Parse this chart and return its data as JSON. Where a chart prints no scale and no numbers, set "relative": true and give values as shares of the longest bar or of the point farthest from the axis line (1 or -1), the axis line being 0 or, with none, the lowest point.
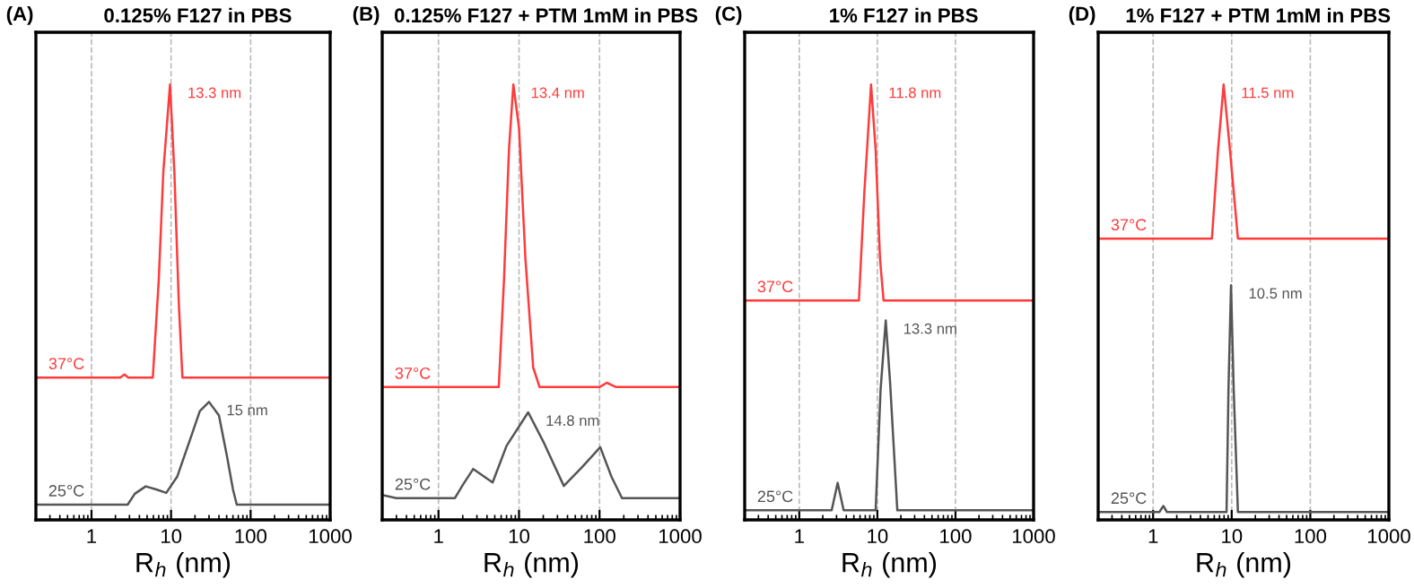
{
  "chart_data": [
    {
      "type": "line",
      "title": "0.125% F127 in PBS",
      "xlabel": "R$_{h}$ (nm)",
      "annotations": [
        "(A)",
        {
          "text": "13.3 nm",
          "x": 9.7,
          "y": 1.0
        },
        {
          "text": "15 nm",
          "x": 30,
          "y": 0.271
        }
      ],
      "relative": true,
      "log": "x",
      "xlim": [
        0.2,
        1000
      ],
      "xticks": [
        1,
        10,
        100,
        1000
      ],
      "grid": "x",
      "line_style": "solid",
      "series": [
        {
          "name": "37°C",
          "color": "#ff3b3b",
          "x": [
            0.2,
            2.3,
            2.6,
            2.9,
            5.9,
            7,
            8,
            9.7,
            11,
            12.5,
            13.9,
            1000
          ],
          "values": [
            0.327,
            0.327,
            0.334,
            0.327,
            0.327,
            0.55,
            0.8,
            1.0,
            0.8,
            0.5,
            0.327,
            0.327
          ]
        },
        {
          "name": "25°C",
          "color": "#555555",
          "x": [
            0.2,
            2.85,
            3.5,
            4.8,
            6.5,
            8.7,
            12,
            17,
            23,
            30,
            40,
            50,
            60,
            67,
            1000
          ],
          "values": [
            0.035,
            0.035,
            0.06,
            0.077,
            0.07,
            0.062,
            0.1,
            0.18,
            0.25,
            0.271,
            0.24,
            0.15,
            0.07,
            0.035,
            0.035
          ]
        }
      ]
    },
    {
      "type": "line",
      "title": "0.125% F127 + PTM 1mM in PBS",
      "xlabel": "R$_{h}$ (nm)",
      "annotations": [
        "(B)",
        {
          "text": "13.4 nm",
          "x": 8.5,
          "y": 1.0
        },
        {
          "text": "14.8 nm",
          "x": 13,
          "y": 0.247
        }
      ],
      "relative": true,
      "log": "x",
      "xlim": [
        0.2,
        1000
      ],
      "xticks": [
        1,
        10,
        100,
        1000
      ],
      "grid": "x",
      "line_style": "solid",
      "series": [
        {
          "name": "37°C",
          "color": "#ff3b3b",
          "x": [
            0.2,
            5.6,
            6.5,
            7.5,
            8.5,
            10,
            12,
            15,
            18,
            100,
            123,
            160,
            1000
          ],
          "values": [
            0.305,
            0.305,
            0.55,
            0.85,
            1.0,
            0.9,
            0.6,
            0.35,
            0.305,
            0.305,
            0.315,
            0.305,
            0.305
          ]
        },
        {
          "name": "25°C",
          "color": "#555555",
          "x": [
            0.2,
            0.3,
            1.6,
            2.0,
            2.7,
            4.7,
            7,
            13,
            20,
            36,
            60,
            102,
            140,
            190,
            1000
          ],
          "values": [
            0.057,
            0.05,
            0.05,
            0.08,
            0.117,
            0.086,
            0.17,
            0.247,
            0.18,
            0.078,
            0.12,
            0.167,
            0.1,
            0.05,
            0.05
          ]
        }
      ]
    },
    {
      "type": "line",
      "title": "1% F127 in PBS",
      "xlabel": "R$_{h}$ (nm)",
      "annotations": [
        "(C)",
        {
          "text": "11.8 nm",
          "x": 8.3,
          "y": 1.0
        },
        {
          "text": "13.3 nm",
          "x": 12.8,
          "y": 0.458
        }
      ],
      "relative": true,
      "log": "x",
      "xlim": [
        0.2,
        1000
      ],
      "xticks": [
        1,
        10,
        100,
        1000
      ],
      "grid": "x",
      "line_style": "solid",
      "series": [
        {
          "name": "37°C",
          "color": "#ff3b3b",
          "x": [
            0.2,
            5.8,
            6.8,
            8.3,
            9.5,
            10.8,
            12,
            1000
          ],
          "values": [
            0.504,
            0.504,
            0.75,
            1.0,
            0.85,
            0.6,
            0.504,
            0.504
          ]
        },
        {
          "name": "25°C",
          "color": "#555555",
          "x": [
            0.2,
            2.6,
            3.1,
            3.7,
            9.5,
            11,
            12.8,
            14.5,
            18,
            1000
          ],
          "values": [
            0.022,
            0.022,
            0.085,
            0.022,
            0.022,
            0.3,
            0.458,
            0.32,
            0.022,
            0.022
          ]
        }
      ]
    },
    {
      "type": "line",
      "title": "1% F127 + PTM 1mM in PBS",
      "xlabel": "R$_{h}$ (nm)",
      "annotations": [
        "(D)",
        {
          "text": "11.5 nm",
          "x": 7.9,
          "y": 1.0
        },
        {
          "text": "10.5 nm",
          "x": 9.8,
          "y": 0.539
        }
      ],
      "relative": true,
      "log": "x",
      "xlim": [
        0.2,
        1000
      ],
      "xticks": [
        1,
        10,
        100,
        1000
      ],
      "grid": "x",
      "line_style": "solid",
      "series": [
        {
          "name": "37°C",
          "color": "#ff3b3b",
          "x": [
            0.2,
            5.6,
            6.7,
            7.9,
            9.5,
            12,
            1000
          ],
          "values": [
            0.646,
            0.646,
            0.85,
            1.0,
            0.85,
            0.646,
            0.646
          ]
        },
        {
          "name": "25°C",
          "color": "#555555",
          "x": [
            0.2,
            1.2,
            1.35,
            1.5,
            8.6,
            9.1,
            9.8,
            10.6,
            12,
            1000
          ],
          "values": [
            0.018,
            0.018,
            0.032,
            0.018,
            0.018,
            0.3,
            0.539,
            0.3,
            0.018,
            0.018
          ]
        }
      ]
    }
  ]
}
